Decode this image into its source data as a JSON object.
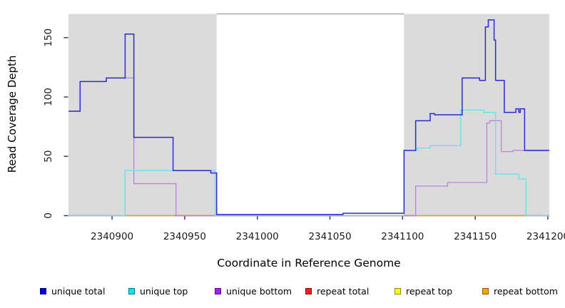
{
  "chart_data": {
    "type": "line",
    "subtype": "step-coverage",
    "title": "",
    "xlabel": "Coordinate in Reference Genome",
    "ylabel": "Read Coverage Depth",
    "xlim": [
      2340870,
      2341201
    ],
    "ylim": [
      0,
      170
    ],
    "grid": false,
    "legend_position": "bottom",
    "x_ticks": [
      {
        "value": 2340900,
        "label": "2340900"
      },
      {
        "value": 2340950,
        "label": "2340950"
      },
      {
        "value": 2341000,
        "label": "2341000"
      },
      {
        "value": 2341050,
        "label": "2341050"
      },
      {
        "value": 2341100,
        "label": "2341100"
      },
      {
        "value": 2341150,
        "label": "2341150"
      },
      {
        "value": 2341200,
        "label": "2341200"
      }
    ],
    "y_ticks": [
      {
        "value": 0,
        "label": "0"
      },
      {
        "value": 50,
        "label": "50"
      },
      {
        "value": 100,
        "label": "100"
      },
      {
        "value": 150,
        "label": "150"
      }
    ],
    "palette": {
      "blue": "#2B2BD0",
      "cyan": "#5FE4EE",
      "purple": "#B786DC",
      "zero_red": "#E35F72",
      "zero_orange": "#FFA41D",
      "zero_green": "#83CE90",
      "region_gray": "#DBDBDB",
      "top_border": "#9C9C9C",
      "axis": "#000000",
      "tick": "#333333",
      "tick_label": "#1a1a1a"
    },
    "shaded_regions": [
      {
        "x0": 2340870,
        "x1": 2340972
      },
      {
        "x0": 2341101,
        "x1": 2341201
      }
    ],
    "top_border_segment": {
      "x0": 2340972,
      "x1": 2341101
    },
    "zero_line_segments": [
      {
        "x0": 2340870,
        "x1": 2340909,
        "color": "zero_green"
      },
      {
        "x0": 2340909,
        "x1": 2340943,
        "color": "zero_orange"
      },
      {
        "x0": 2340943,
        "x1": 2341109,
        "color": "zero_red"
      },
      {
        "x0": 2341109,
        "x1": 2341185,
        "color": "zero_orange"
      },
      {
        "x0": 2341185,
        "x1": 2341201,
        "color": "zero_green"
      }
    ],
    "series": [
      {
        "key": "unique_bottom",
        "name": "unique bottom",
        "color": "purple",
        "width": 1.3,
        "x_end": 2341201,
        "points": [
          [
            2340870,
            88
          ],
          [
            2340878,
            113
          ],
          [
            2340896,
            116
          ],
          [
            2340915,
            27
          ],
          [
            2340944,
            0
          ],
          [
            2341109,
            25
          ],
          [
            2341131,
            28
          ],
          [
            2341158,
            78
          ],
          [
            2341160,
            80
          ],
          [
            2341168,
            54
          ],
          [
            2341176,
            55
          ]
        ]
      },
      {
        "key": "unique_top",
        "name": "unique top",
        "color": "cyan",
        "width": 1.3,
        "x_end": 2341201,
        "points": [
          [
            2340870,
            0
          ],
          [
            2340909,
            38
          ],
          [
            2340971,
            0
          ],
          [
            2341101,
            55
          ],
          [
            2341110,
            57
          ],
          [
            2341119,
            59
          ],
          [
            2341140,
            89
          ],
          [
            2341156,
            87
          ],
          [
            2341164,
            35
          ],
          [
            2341180,
            31
          ],
          [
            2341185,
            0
          ]
        ]
      },
      {
        "key": "unique_total",
        "name": "unique total",
        "color": "blue",
        "width": 1.5,
        "x_end": 2341201,
        "points": [
          [
            2340870,
            88
          ],
          [
            2340878,
            113
          ],
          [
            2340896,
            116
          ],
          [
            2340909,
            153
          ],
          [
            2340915,
            66
          ],
          [
            2340942,
            38
          ],
          [
            2340968,
            36
          ],
          [
            2340972,
            1
          ],
          [
            2341059,
            2
          ],
          [
            2341101,
            55
          ],
          [
            2341109,
            80
          ],
          [
            2341119,
            86
          ],
          [
            2341122,
            85
          ],
          [
            2341141,
            116
          ],
          [
            2341153,
            114
          ],
          [
            2341157,
            159
          ],
          [
            2341159,
            165
          ],
          [
            2341163,
            148
          ],
          [
            2341164,
            114
          ],
          [
            2341170,
            87
          ],
          [
            2341178,
            90
          ],
          [
            2341180,
            87
          ],
          [
            2341181,
            90
          ],
          [
            2341184,
            55
          ]
        ]
      }
    ],
    "draw_order": [
      "unique_bottom",
      "unique_top",
      "unique_total"
    ],
    "legend": {
      "items": [
        {
          "label": "unique total",
          "color": "#0000EE"
        },
        {
          "label": "unique top",
          "color": "#00E9F0"
        },
        {
          "label": "unique bottom",
          "color": "#A21FF0"
        },
        {
          "label": "repeat total",
          "color": "#EE2020"
        },
        {
          "label": "repeat top",
          "color": "#FFFF00"
        },
        {
          "label": "repeat bottom",
          "color": "#FFA500"
        }
      ]
    }
  }
}
